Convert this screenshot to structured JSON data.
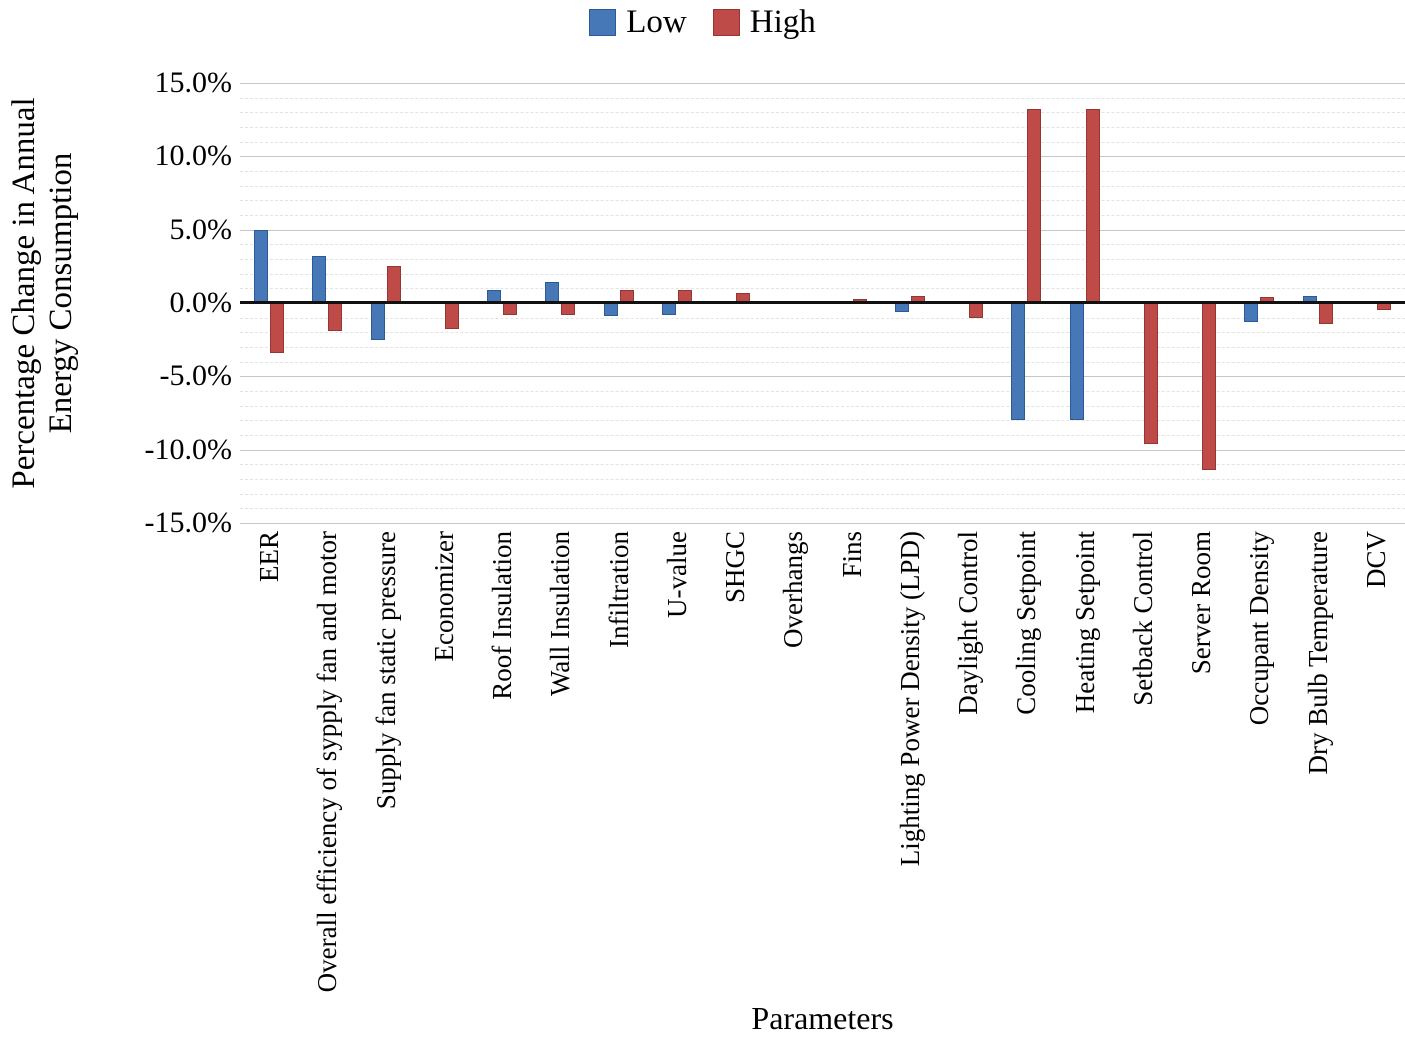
{
  "legend": {
    "low": {
      "label": "Low",
      "color": "#4677B6",
      "border": "#2E5A94"
    },
    "high": {
      "label": "High",
      "color": "#BE4B48",
      "border": "#933634"
    }
  },
  "y_axis": {
    "title_line1": "Percentage Change in Annual",
    "title_line2": "Energy Consumption",
    "ticks": [
      "15.0%",
      "10.0%",
      "5.0%",
      "0.0%",
      "-5.0%",
      "-10.0%",
      "-15.0%"
    ]
  },
  "x_axis": {
    "title": "Parameters"
  },
  "chart_data": {
    "type": "bar",
    "title": "",
    "xlabel": "Parameters",
    "ylabel": "Percentage Change in Annual Energy Consumption",
    "ylim": [
      -15,
      15
    ],
    "y_tick_step": 5,
    "y_minor_step": 1,
    "grid": true,
    "legend_position": "top",
    "categories": [
      "EER",
      "Overall efficiency of sypply fan and motor",
      "Supply fan static pressure",
      "Economizer",
      "Roof Insulation",
      "Wall Insulation",
      "Infiltration",
      "U-value",
      "SHGC",
      "Overhangs",
      "Fins",
      "Lighting Power Density (LPD)",
      "Daylight Control",
      "Cooling Setpoint",
      "Heating Setpoint",
      "Setback Control",
      "Server Room",
      "Occupant Density",
      "Dry Bulb Temperature",
      "DCV"
    ],
    "series": [
      {
        "name": "Low",
        "color": "#4677B6",
        "values": [
          5.0,
          3.2,
          -2.5,
          0,
          0.9,
          1.4,
          -0.9,
          -0.8,
          0,
          0,
          0,
          -0.6,
          0,
          -8.0,
          -8.0,
          0,
          0,
          -1.3,
          0.5,
          0
        ]
      },
      {
        "name": "High",
        "color": "#BE4B48",
        "values": [
          -3.4,
          -1.9,
          2.5,
          -1.8,
          -0.8,
          -0.8,
          0.9,
          0.9,
          0.7,
          0,
          0.3,
          0.5,
          -1.0,
          13.2,
          13.2,
          -9.6,
          -11.4,
          0.4,
          -1.4,
          -0.5
        ]
      }
    ]
  }
}
